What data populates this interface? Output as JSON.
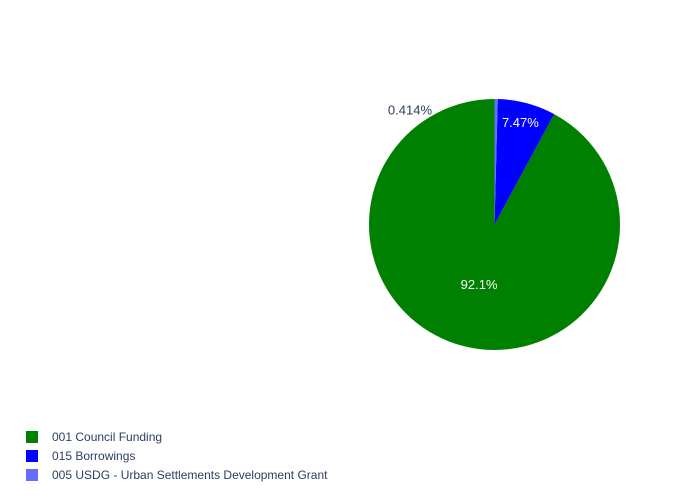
{
  "chart_data": {
    "type": "pie",
    "title": "",
    "slices": [
      {
        "label": "001 Council Funding",
        "percent_label": "92.1%",
        "value": 92.116,
        "color": "#008000",
        "text_color": "#ffffff",
        "text_position": "inside"
      },
      {
        "label": "015 Borrowings",
        "percent_label": "7.47%",
        "value": 7.47,
        "color": "#0000ff",
        "text_color": "#ffffff",
        "text_position": "inside"
      },
      {
        "label": "005 USDG - Urban Settlements Development Grant",
        "percent_label": "0.414%",
        "value": 0.414,
        "color": "#636efa",
        "text_color": "#2a3f5f",
        "text_position": "outside"
      }
    ],
    "direction": "counterclockwise",
    "start_angle": "top",
    "legend_position": "bottom-left"
  }
}
